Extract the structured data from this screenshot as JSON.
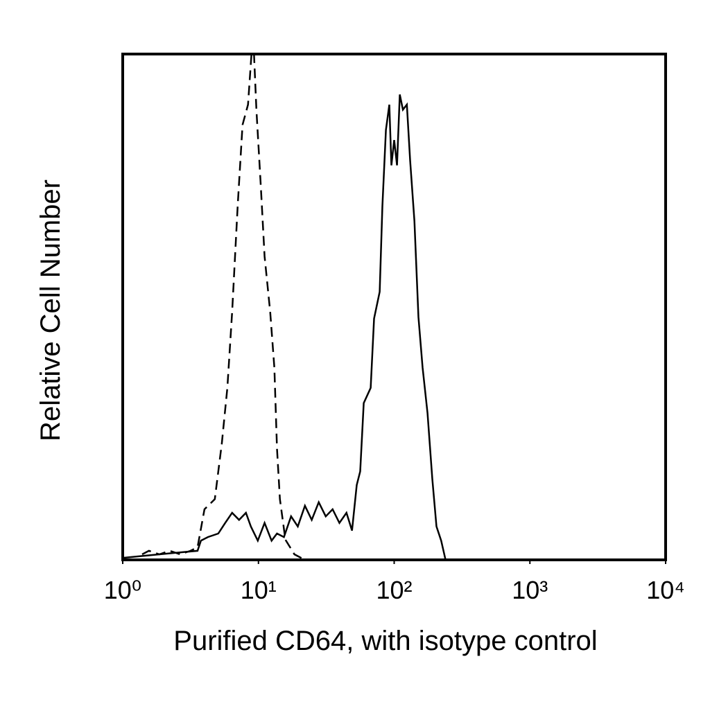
{
  "chart_data": {
    "type": "line",
    "xlabel": "Purified CD64, with isotype control",
    "ylabel": "Relative Cell Number",
    "xscale": "log",
    "xlim": [
      1,
      10000
    ],
    "xticks": [
      {
        "value": 1,
        "label": "10⁰"
      },
      {
        "value": 10,
        "label": "10¹"
      },
      {
        "value": 100,
        "label": "10²"
      },
      {
        "value": 1000,
        "label": "10³"
      },
      {
        "value": 10000,
        "label": "10⁴"
      }
    ],
    "ylim": [
      0,
      100
    ],
    "series": [
      {
        "color": "#000000",
        "dashed": true,
        "x": [
          1.39,
          1.56,
          1.86,
          2.22,
          2.65,
          3.16,
          3.56,
          4.0,
          4.77,
          5.37,
          5.9,
          6.4,
          7.03,
          7.63,
          8.38,
          8.89,
          9.2,
          9.66,
          10.4,
          11.1,
          12.2,
          13.1,
          13.7,
          14.4,
          15.8,
          18.4,
          22
        ],
        "values": [
          1.1,
          1.8,
          1.1,
          1.8,
          1.1,
          1.8,
          2.5,
          10,
          12,
          23,
          34,
          49,
          70,
          86,
          90,
          100,
          102,
          89,
          74,
          60,
          49,
          38,
          22,
          12,
          4,
          1.1,
          0
        ]
      },
      {
        "color": "#000000",
        "dashed": false,
        "x": [
          1,
          1.86,
          3.56,
          3.77,
          4.24,
          5.06,
          5.69,
          6.4,
          7.2,
          8.09,
          8.79,
          9.89,
          11.1,
          12.5,
          13.7,
          15.4,
          17.4,
          19.5,
          22,
          24.7,
          27.8,
          31.3,
          35.2,
          39.5,
          44.5,
          48.9,
          53,
          56.2,
          59.7,
          67.1,
          71.1,
          78.2,
          81.9,
          86.9,
          92.1,
          95.4,
          100,
          105,
          110,
          116,
          124,
          131,
          141,
          151,
          162,
          176,
          191,
          205,
          222,
          239
        ],
        "values": [
          0.4,
          1.1,
          1.8,
          3.8,
          4.5,
          5.2,
          7.3,
          9.3,
          7.9,
          9.3,
          6.6,
          3.8,
          7.3,
          3.8,
          5.2,
          4.5,
          8.6,
          6.6,
          10.7,
          7.9,
          11.4,
          8.6,
          10,
          7.3,
          9.3,
          5.8,
          14.8,
          17.5,
          31,
          34,
          47.7,
          53,
          69.9,
          85,
          90,
          78,
          83,
          78,
          92,
          89,
          90,
          79,
          67,
          48,
          38,
          29,
          16,
          6.6,
          3.8,
          0
        ]
      }
    ]
  }
}
